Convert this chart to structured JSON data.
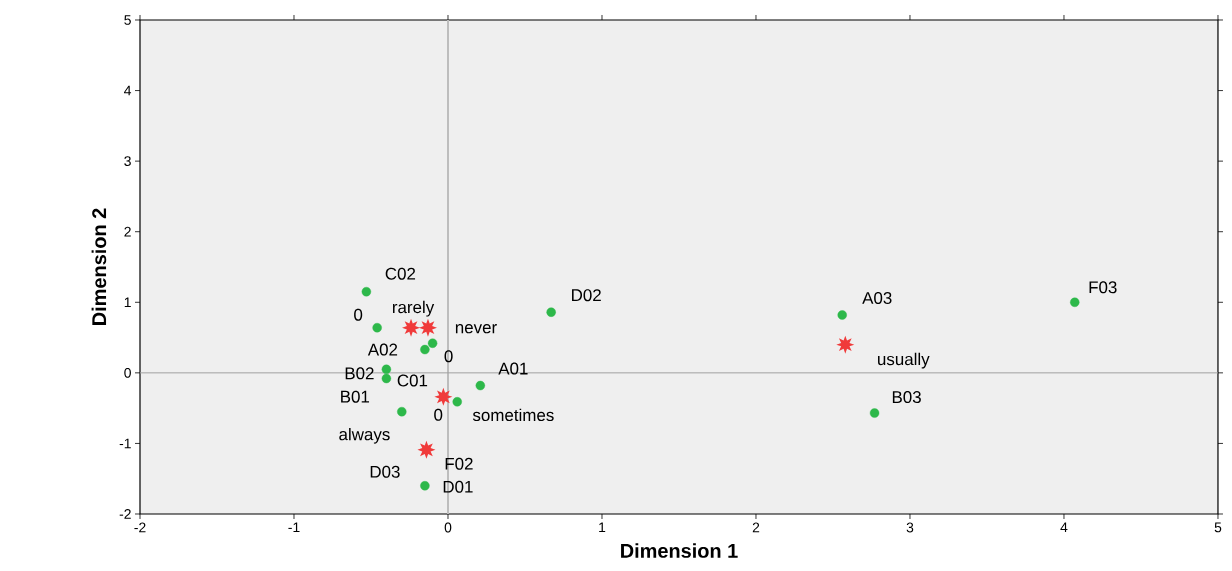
{
  "chart_data": {
    "type": "scatter",
    "xlabel": "Dimension 1",
    "ylabel": "Dimension 2",
    "xlim": [
      -2,
      5
    ],
    "ylim": [
      -2,
      5
    ],
    "xticks": [
      -2,
      -1,
      0,
      1,
      2,
      3,
      4,
      5
    ],
    "yticks": [
      -2,
      -1,
      0,
      1,
      2,
      3,
      4,
      5
    ],
    "grid": false,
    "ref_lines": [
      {
        "axis": "x",
        "value": 0,
        "color": "#bdbdbd"
      },
      {
        "axis": "y",
        "value": 0,
        "color": "#a0a0a0"
      }
    ],
    "series": [
      {
        "color": "#2db84a",
        "marker": "circle",
        "x": [
          -0.53,
          -0.46,
          -0.1,
          -0.15,
          -0.4,
          -0.4,
          0.21,
          0.06,
          -0.3,
          -0.15,
          null,
          null,
          0.67,
          2.56,
          4.07,
          2.77
        ],
        "values": [
          1.15,
          0.64,
          0.42,
          0.33,
          0.05,
          -0.08,
          -0.18,
          -0.41,
          -0.55,
          -1.6,
          null,
          null,
          0.86,
          0.82,
          1.0,
          -0.57
        ]
      },
      {
        "color": "#f03a3a",
        "marker": "star",
        "x": [
          -0.24,
          -0.13,
          -0.03,
          -0.14,
          2.58
        ],
        "values": [
          0.64,
          0.64,
          -0.34,
          -1.09,
          0.4
        ]
      }
    ],
    "annotations": [
      {
        "text": "C02",
        "x": -0.53,
        "y": 1.15
      },
      {
        "text": "0",
        "x": -0.46,
        "y": 0.64
      },
      {
        "text": "0",
        "x": -0.1,
        "y": 0.42
      },
      {
        "text": "A02",
        "x": -0.15,
        "y": 0.33
      },
      {
        "text": "B02",
        "x": -0.4,
        "y": 0.05
      },
      {
        "text": "C01",
        "x": -0.4,
        "y": -0.08
      },
      {
        "text": "A01",
        "x": 0.21,
        "y": -0.18
      },
      {
        "text": "0",
        "x": 0.06,
        "y": -0.41
      },
      {
        "text": "B01",
        "x": -0.3,
        "y": -0.55
      },
      {
        "text": "D03",
        "x": -0.15,
        "y": -1.6
      },
      {
        "text": "F02",
        "x": -0.15,
        "y": -1.6
      },
      {
        "text": "D01",
        "x": -0.15,
        "y": -1.6
      },
      {
        "text": "D02",
        "x": 0.67,
        "y": 0.86
      },
      {
        "text": "A03",
        "x": 2.56,
        "y": 0.82
      },
      {
        "text": "F03",
        "x": 4.07,
        "y": 1.0
      },
      {
        "text": "B03",
        "x": 2.77,
        "y": -0.57
      },
      {
        "text": "rarely",
        "x": -0.24,
        "y": 0.64
      },
      {
        "text": "never",
        "x": -0.13,
        "y": 0.64
      },
      {
        "text": "sometimes",
        "x": -0.03,
        "y": -0.34
      },
      {
        "text": "always",
        "x": -0.14,
        "y": -1.09
      },
      {
        "text": "usually",
        "x": 2.58,
        "y": 0.4
      }
    ]
  }
}
